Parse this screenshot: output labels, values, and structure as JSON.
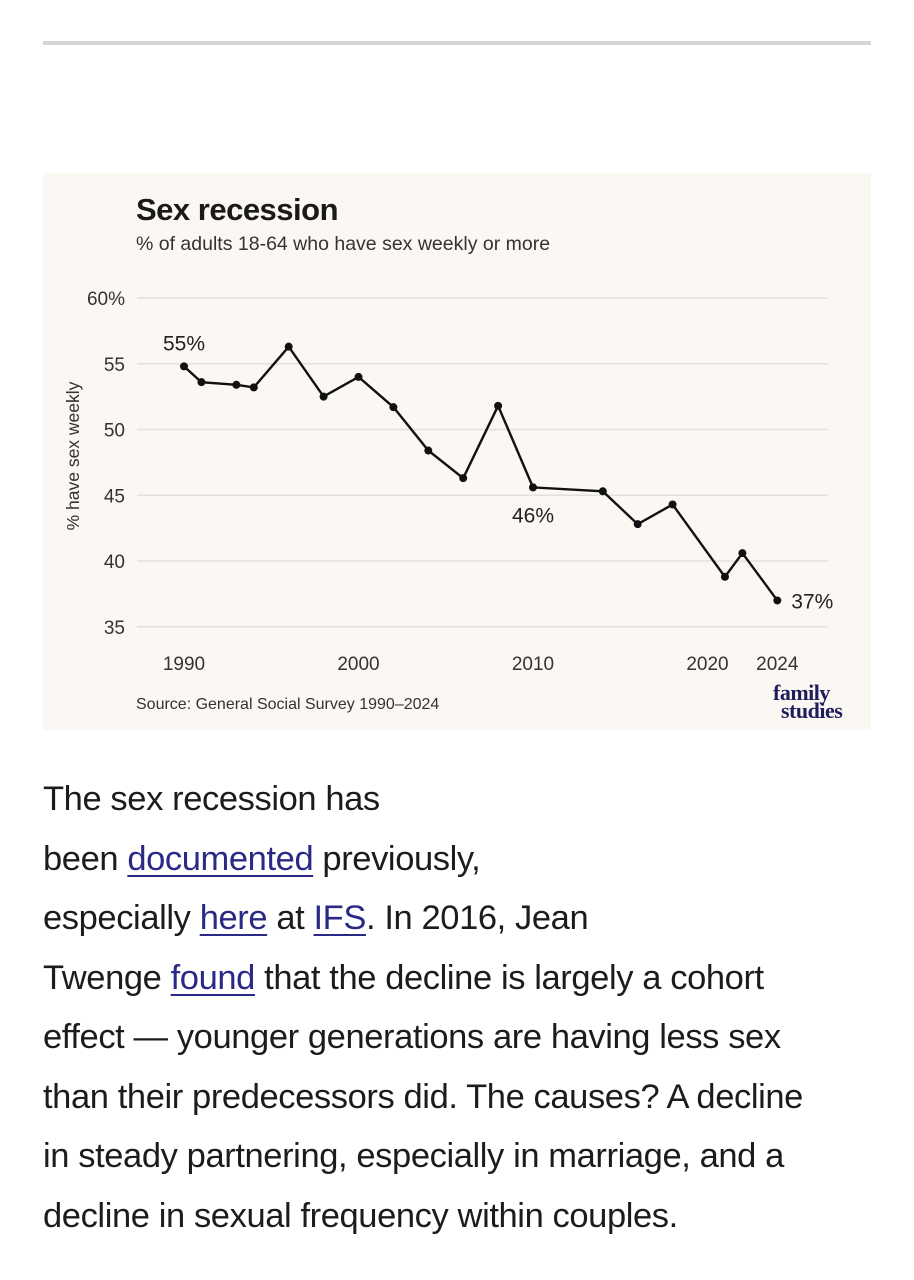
{
  "chart_data": {
    "type": "line",
    "title": "Sex recession",
    "subtitle": "% of adults 18-64 who have sex weekly or more",
    "ylabel": "% have sex weekly",
    "xlabel": "",
    "ylim": [
      35,
      60
    ],
    "xlim": [
      1990,
      2024
    ],
    "yticks": [
      "60%",
      "55",
      "50",
      "45",
      "40",
      "35"
    ],
    "ytick_values": [
      60,
      55,
      50,
      45,
      40,
      35
    ],
    "xticks": [
      "1990",
      "2000",
      "2010",
      "2020",
      "2024"
    ],
    "xtick_values": [
      1990,
      2000,
      2010,
      2020,
      2024
    ],
    "grid": true,
    "series": [
      {
        "x": [
          1990,
          1991,
          1993,
          1994,
          1996,
          1998,
          2000,
          2002,
          2004,
          2006,
          2008,
          2010,
          2014,
          2016,
          2018,
          2021,
          2022,
          2024
        ],
        "y": [
          54.8,
          53.6,
          53.4,
          53.2,
          56.3,
          52.5,
          54.0,
          51.7,
          48.4,
          46.3,
          51.8,
          45.6,
          45.3,
          42.8,
          44.3,
          38.8,
          40.6,
          37.0
        ]
      }
    ],
    "annotations": [
      {
        "text": "55%",
        "x": 1990,
        "y": 54.8
      },
      {
        "text": "46%",
        "x": 2010,
        "y": 45.6
      },
      {
        "text": "37%",
        "x": 2024,
        "y": 37.0
      }
    ],
    "source": "Source: General Social Survey 1990–2024",
    "logo": "family studies",
    "colors": {
      "line": "#111111",
      "grid": "#e3e1dd",
      "background": "#fbf7f2",
      "logo": "#1f1f5e"
    }
  },
  "article": {
    "lines": [
      [
        {
          "text": "The sex recession has"
        }
      ],
      [
        {
          "text": "been "
        },
        {
          "text": "documented",
          "link": true
        },
        {
          "text": " previously,"
        }
      ],
      [
        {
          "text": "especially "
        },
        {
          "text": "here",
          "link": true
        },
        {
          "text": " at "
        },
        {
          "text": "IFS",
          "link": true
        },
        {
          "text": ". In 2016, Jean"
        }
      ],
      [
        {
          "text": "Twenge "
        },
        {
          "text": "found",
          "link": true
        },
        {
          "text": " that the decline is largely a cohort"
        }
      ],
      [
        {
          "text": "effect — younger generations are having less sex"
        }
      ],
      [
        {
          "text": "than their predecessors did. The causes? A decline"
        }
      ],
      [
        {
          "text": "in steady partnering, especially in marriage, and a"
        }
      ],
      [
        {
          "text": "decline in sexual frequency within couples."
        }
      ]
    ],
    "link_color": "#2a2a86"
  }
}
